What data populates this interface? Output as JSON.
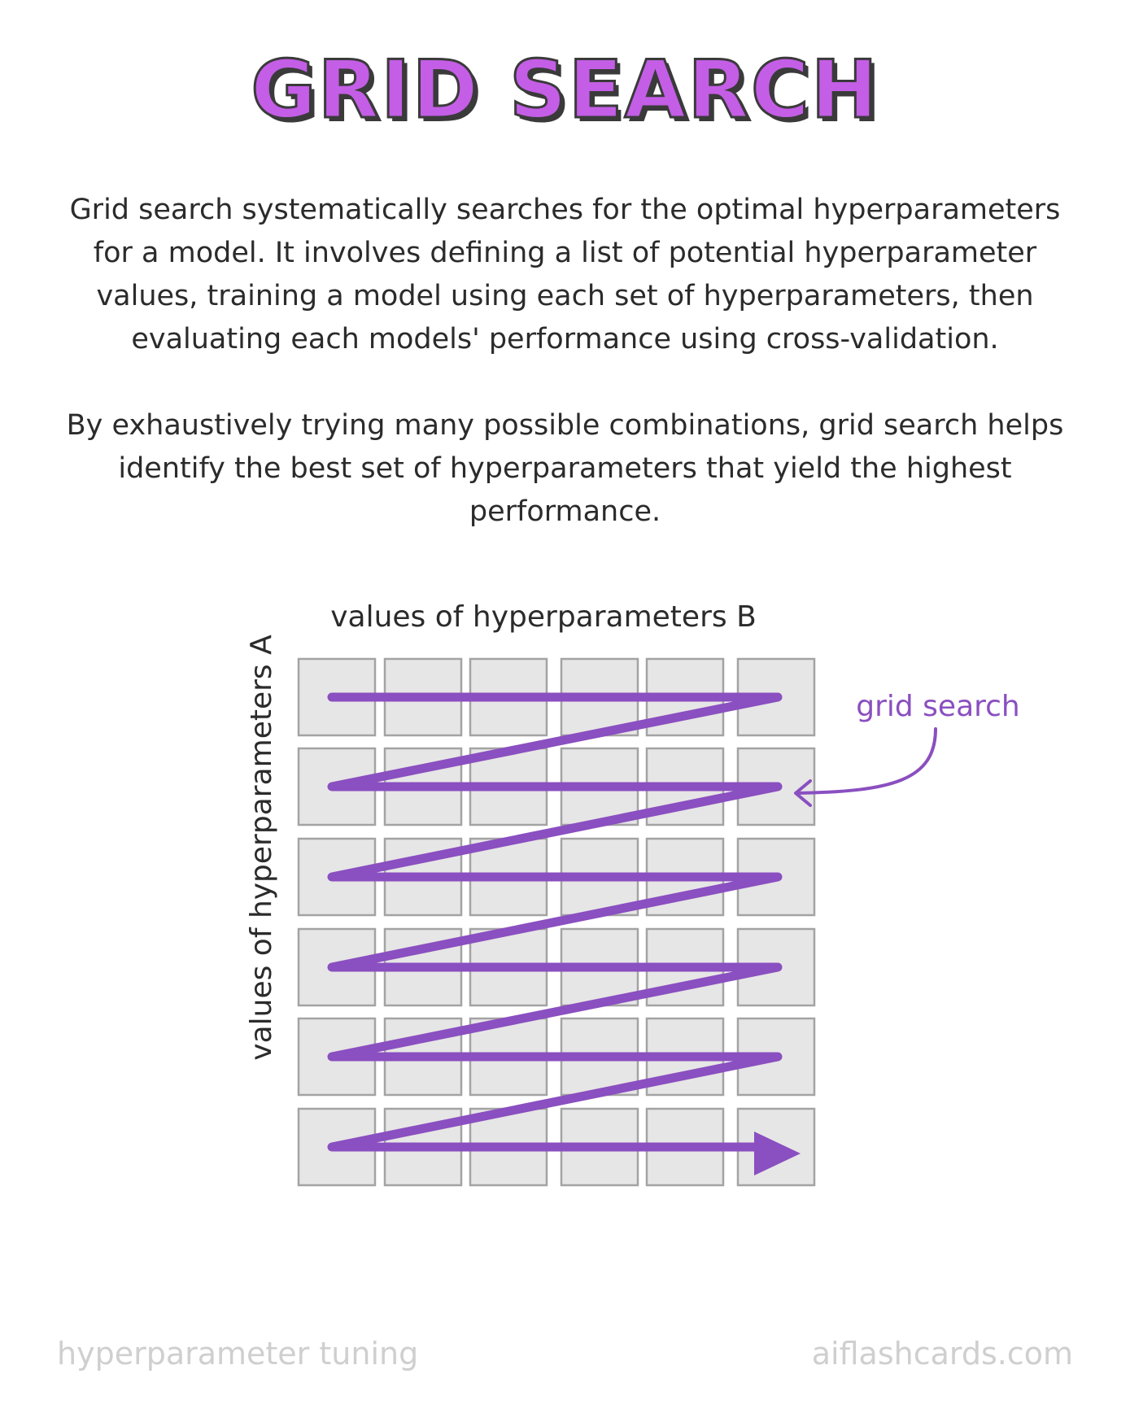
{
  "title": "GRID SEARCH",
  "paragraphs": [
    "Grid search systematically searches for the optimal hyperparameters for a model. It involves defining a list of potential hyperparameter values, training a model using each set of hyperparameters, then evaluating each models' performance using cross-validation.",
    "By exhaustively trying many possible combinations, grid search helps identify the best set of hyperparameters that yield the highest performance."
  ],
  "diagram": {
    "x_axis_label": "values of hyperparameters B",
    "y_axis_label": "values of hyperparameters A",
    "annotation": "grid search",
    "rows": 6,
    "cols": 6,
    "colors": {
      "cell_fill": "#e6e6e6",
      "cell_stroke": "#a3a3a3",
      "path": "#8a4fc0",
      "annotation": "#8a4fc0"
    }
  },
  "footer": {
    "left": "hyperparameter tuning",
    "right": "aiflashcards.com"
  }
}
